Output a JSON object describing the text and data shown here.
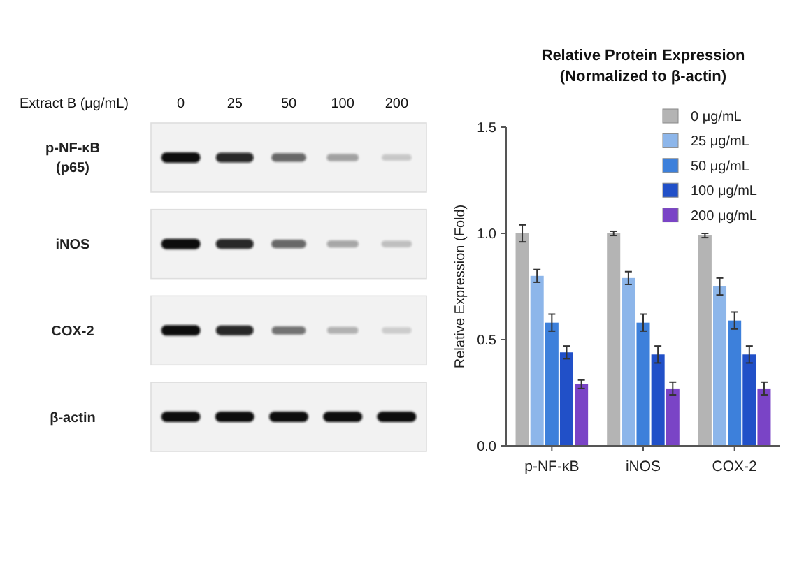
{
  "chart_data": [
    {
      "type": "other",
      "xlabel": "Extract B (μg/mL)",
      "categories": [
        "0",
        "25",
        "50",
        "100",
        "200"
      ],
      "y_categories": [
        "p-NF-κB (p65)",
        "iNOS",
        "COX-2",
        "β-actin"
      ]
    },
    {
      "type": "bar",
      "title": "Relative Protein Expression",
      "subtitle": "(Normalized to β-actin)",
      "ylabel": "Relative Expression (Fold)",
      "categories": [
        "p-NF-κB",
        "iNOS",
        "COX-2"
      ],
      "series": [
        {
          "name": "0 μg/mL",
          "color": "#b4b4b4",
          "values": [
            1.0,
            1.0,
            0.99
          ],
          "errors": [
            0.04,
            0.01,
            0.01
          ]
        },
        {
          "name": "25 μg/mL",
          "color": "#8db6ea",
          "values": [
            0.8,
            0.79,
            0.75
          ],
          "errors": [
            0.03,
            0.03,
            0.04
          ]
        },
        {
          "name": "50 μg/mL",
          "color": "#3d80db",
          "values": [
            0.58,
            0.58,
            0.59
          ],
          "errors": [
            0.04,
            0.04,
            0.04
          ]
        },
        {
          "name": "100 μg/mL",
          "color": "#2150c8",
          "values": [
            0.44,
            0.43,
            0.43
          ],
          "errors": [
            0.03,
            0.04,
            0.04
          ]
        },
        {
          "name": "200 μg/mL",
          "color": "#7a44c6",
          "values": [
            0.29,
            0.27,
            0.27
          ],
          "errors": [
            0.02,
            0.03,
            0.03
          ]
        }
      ],
      "ylim": [
        0,
        1.5
      ],
      "yticks": [
        {
          "value": 0,
          "label": "0.0"
        },
        {
          "value": 0.5,
          "label": "0.5"
        },
        {
          "value": 1,
          "label": "1.0"
        },
        {
          "value": 1.5,
          "label": "1.5"
        }
      ],
      "legend": "top right"
    }
  ]
}
